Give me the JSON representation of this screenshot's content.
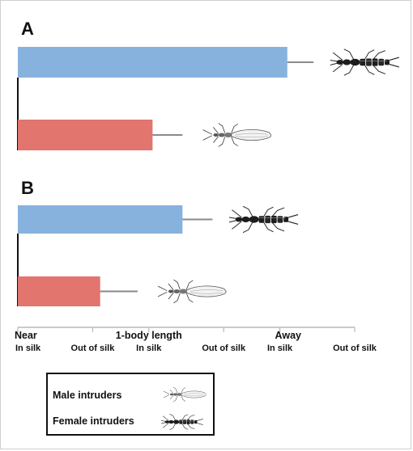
{
  "chart_data": [
    {
      "type": "bar",
      "orientation": "horizontal",
      "panel": "A",
      "series": [
        {
          "name": "Female intruders",
          "color": "#88b2de",
          "value": 3.6,
          "error": 0.35
        },
        {
          "name": "Male intruders",
          "color": "#e2756d",
          "value": 1.8,
          "error": 0.4
        }
      ]
    },
    {
      "type": "bar",
      "orientation": "horizontal",
      "panel": "B",
      "series": [
        {
          "name": "Female intruders",
          "color": "#88b2de",
          "value": 2.2,
          "error": 0.4
        },
        {
          "name": "Male intruders",
          "color": "#e2756d",
          "value": 1.1,
          "error": 0.5
        }
      ]
    }
  ],
  "x_axis": {
    "range": [
      0,
      4.5
    ],
    "major_ticks": [
      {
        "value": 0,
        "label": "Near"
      },
      {
        "value": 1.75,
        "label": "1-body length"
      },
      {
        "value": 3.5,
        "label": "Away"
      }
    ],
    "minor_ticks": [
      {
        "value": 0,
        "label": "In silk"
      },
      {
        "value": 1,
        "label": "Out of silk"
      },
      {
        "value": 1.75,
        "label": "In silk"
      },
      {
        "value": 2.75,
        "label": "Out of silk"
      },
      {
        "value": 3.5,
        "label": "In silk"
      },
      {
        "value": 4.5,
        "label": "Out of silk"
      }
    ]
  },
  "legend": {
    "male_label": "Male intruders",
    "female_label": "Female intruders",
    "male_icon": "pale-winged-insect-icon",
    "female_icon": "dark-wingless-insect-icon"
  },
  "colors": {
    "blue": "#88b2de",
    "red": "#e2756d",
    "axis": "#b9b9b9",
    "errorbar": "#8a8a8a"
  }
}
